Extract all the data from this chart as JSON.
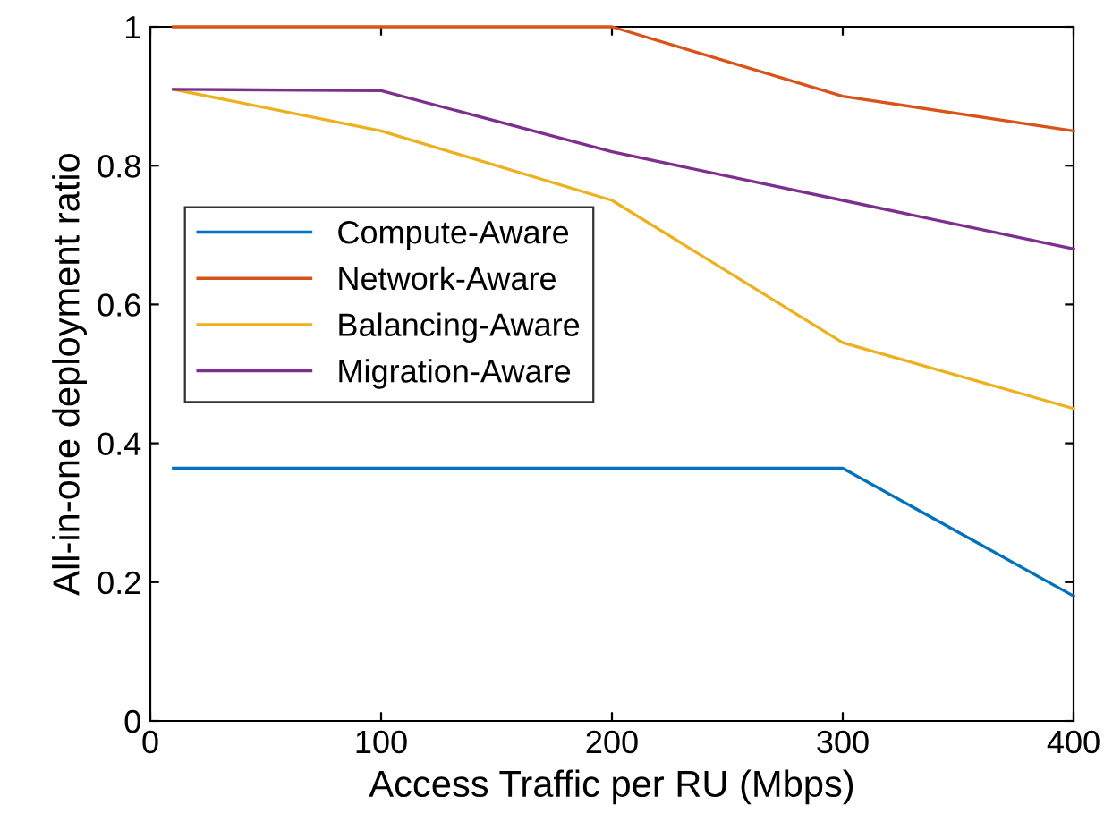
{
  "chart_data": {
    "type": "line",
    "xlabel": "Access Traffic per RU (Mbps)",
    "ylabel": "All-in-one deployment ratio",
    "x": [
      10,
      100,
      200,
      300,
      400
    ],
    "series": [
      {
        "name": "Compute-Aware",
        "color": "#0072bd",
        "values": [
          0.364,
          0.364,
          0.364,
          0.364,
          0.18
        ]
      },
      {
        "name": "Network-Aware",
        "color": "#d95319",
        "values": [
          1,
          1,
          1,
          0.9,
          0.85
        ]
      },
      {
        "name": "Balancing-Aware",
        "color": "#edb120",
        "values": [
          0.91,
          0.85,
          0.75,
          0.545,
          0.45
        ]
      },
      {
        "name": "Migration-Aware",
        "color": "#7e2f8e",
        "values": [
          0.91,
          0.908,
          0.82,
          0.75,
          0.68
        ]
      }
    ],
    "xlim": [
      0,
      400
    ],
    "xticks": [
      0,
      100,
      200,
      300,
      400
    ],
    "ylim": [
      0,
      1
    ],
    "yticks": [
      0,
      0.2,
      0.4,
      0.6,
      0.8,
      1
    ],
    "grid": false,
    "legend": "center left",
    "marker": "none",
    "line_style": "solid"
  }
}
